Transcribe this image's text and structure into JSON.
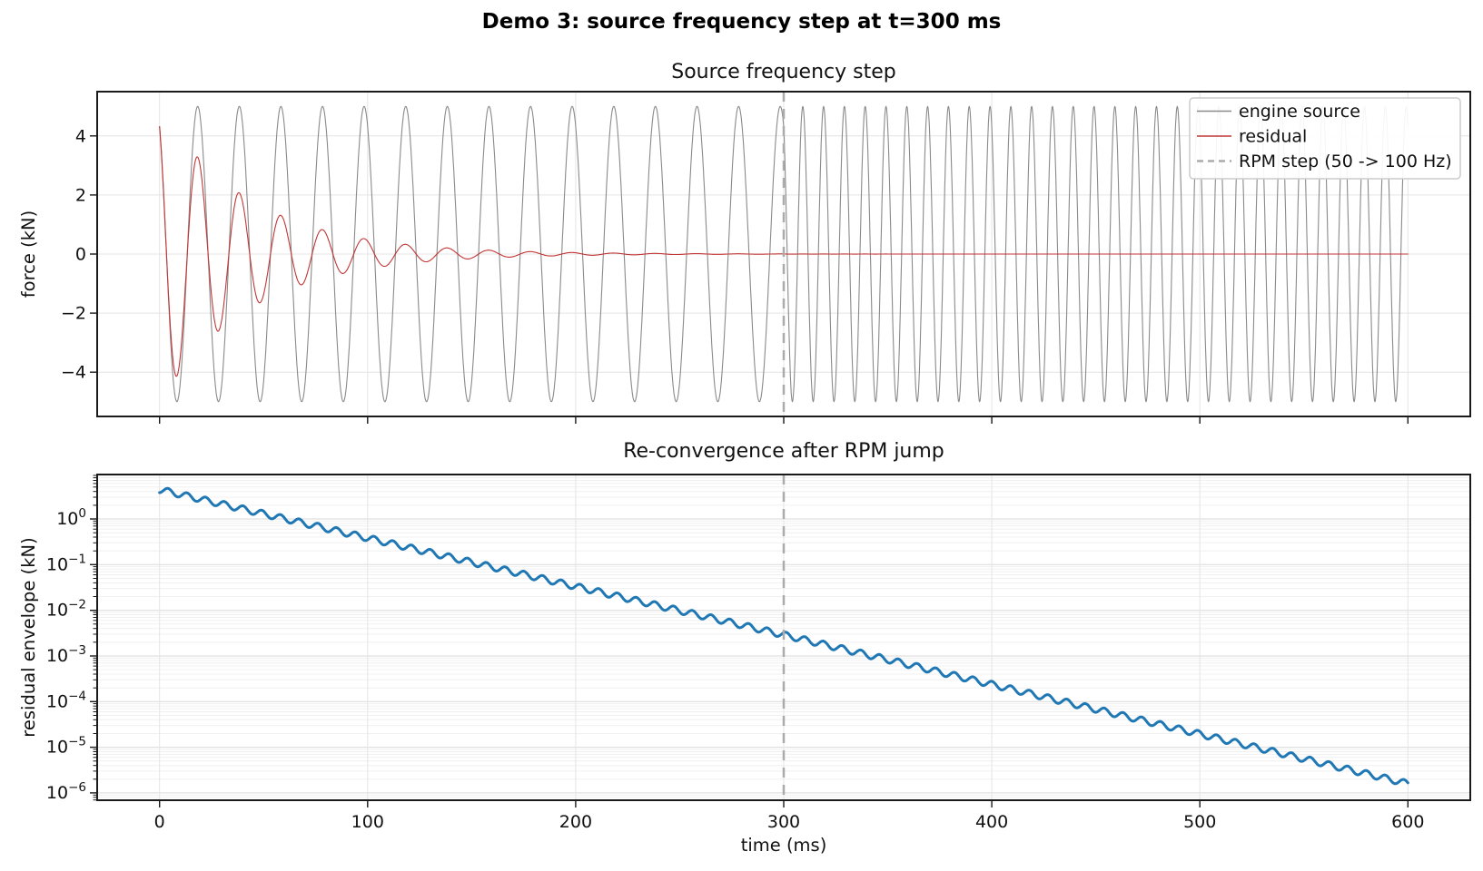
{
  "figure": {
    "suptitle": "Demo 3: source frequency step at t=300 ms",
    "background": "#ffffff"
  },
  "chart_data": [
    {
      "id": "source-frequency-step",
      "type": "line",
      "title": "Source frequency step",
      "xlabel": "",
      "ylabel": "force (kN)",
      "xlim": [
        -30,
        630
      ],
      "ylim": [
        -5.5,
        5.5
      ],
      "grid": true,
      "xticks": {
        "values": [
          0,
          100,
          200,
          300,
          400,
          500,
          600
        ],
        "labels": []
      },
      "yticks": {
        "values": [
          -4,
          -2,
          0,
          2,
          4
        ],
        "labels": [
          "−4",
          "−2",
          "0",
          "2",
          "4"
        ]
      },
      "series": [
        {
          "name": "engine source",
          "color": "#8a8a8a",
          "width": 1.1,
          "model": {
            "kind": "sine_freq_step",
            "amplitude_kN": 5,
            "freq1_hz": 50,
            "freq2_hz": 100,
            "step_ms": 300,
            "phase0_rad": 2.1,
            "t_range_ms": [
              0,
              600
            ]
          }
        },
        {
          "name": "residual",
          "color": "#c23636",
          "width": 1.1,
          "model": {
            "kind": "damped_sine_freq_step",
            "amplitude_kN": 5,
            "freq1_hz": 50,
            "freq2_hz": 100,
            "step_ms": 300,
            "phase0_rad": 2.1,
            "decay_tau_ms": 43.5,
            "initial_value_kN": 4.32,
            "t_range_ms": [
              0,
              600
            ]
          }
        }
      ],
      "vline": {
        "x": 300,
        "color": "#ababab",
        "width": 2.5,
        "dash": [
          11,
          8
        ],
        "label": "RPM step (50 -> 100 Hz)"
      },
      "legend": {
        "position": "upper right",
        "entries": [
          {
            "label": "engine source",
            "color": "#8a8a8a",
            "width": 1.4,
            "dash": null
          },
          {
            "label": "residual",
            "color": "#c23636",
            "width": 1.4,
            "dash": null
          },
          {
            "label": "RPM step (50 -> 100 Hz)",
            "color": "#ababab",
            "width": 2.5,
            "dash": [
              7,
              5
            ]
          }
        ]
      }
    },
    {
      "id": "reconvergence-after-rpm-jump",
      "type": "line",
      "yscale": "log",
      "title": "Re-convergence after RPM jump",
      "xlabel": "time (ms)",
      "ylabel": "residual envelope (kN)",
      "xlim": [
        -30,
        630
      ],
      "ylim_log10": [
        -6.16,
        0.974
      ],
      "grid": true,
      "xticks": {
        "values": [
          0,
          100,
          200,
          300,
          400,
          500,
          600
        ],
        "labels": [
          "0",
          "100",
          "200",
          "300",
          "400",
          "500",
          "600"
        ]
      },
      "yticks_log": [
        {
          "log10": 0,
          "exp_label": "0"
        },
        {
          "log10": -1,
          "exp_label": "−1"
        },
        {
          "log10": -2,
          "exp_label": "−2"
        },
        {
          "log10": -3,
          "exp_label": "−3"
        },
        {
          "log10": -4,
          "exp_label": "−4"
        },
        {
          "log10": -5,
          "exp_label": "−5"
        },
        {
          "log10": -6,
          "exp_label": "−6"
        }
      ],
      "series": [
        {
          "name": "residual envelope",
          "color": "#1f77b4",
          "width": 3,
          "model": {
            "kind": "log_linear_ripple",
            "anchors": [
              {
                "t_ms": 0,
                "value_kN": 4.4
              },
              {
                "t_ms": 300,
                "value_kN": 0.0029
              },
              {
                "t_ms": 600,
                "value_kN": 1.6e-06
              }
            ],
            "ripple_period_ms": 9,
            "ripple_amp_decades": 0.07,
            "ripple_phase_rad": -1.3,
            "t_range_ms": [
              0,
              600
            ]
          }
        }
      ],
      "vline": {
        "x": 300,
        "color": "#ababab",
        "width": 2.5,
        "dash": [
          11,
          8
        ],
        "label": "RPM step (50 -> 100 Hz)"
      }
    }
  ]
}
